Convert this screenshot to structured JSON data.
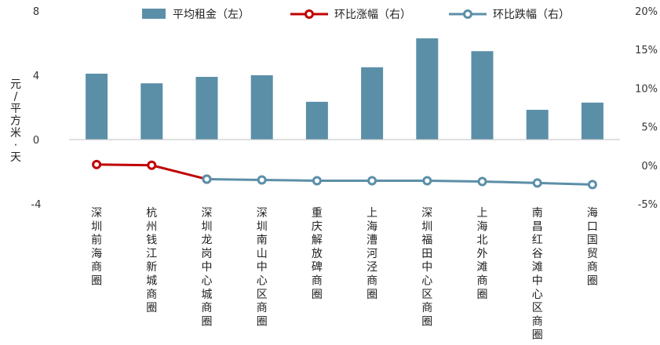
{
  "chart_data": {
    "type": "bar+line",
    "title": "",
    "ylabel_left": "元/平方米·天",
    "ylabel_chars": [
      "元",
      "/",
      "平",
      "方",
      "米",
      "·",
      "天"
    ],
    "ylim_left": [
      -4,
      8
    ],
    "ylim_right": [
      -5,
      20
    ],
    "left_ticks": [
      "8",
      "4",
      "0",
      "-4"
    ],
    "left_tick_values": [
      8,
      4,
      0,
      -4
    ],
    "right_ticks": [
      "20%",
      "15%",
      "10%",
      "5%",
      "0%",
      "-5%"
    ],
    "right_tick_values": [
      20,
      15,
      10,
      5,
      0,
      -5
    ],
    "categories": [
      "深圳前海商圈",
      "杭州钱江新城商圈",
      "深圳龙岗中心城商圈",
      "深圳南山中心区商圈",
      "重庆解放碑商圈",
      "上海漕河泾商圈",
      "深圳福田中心区商圈",
      "上海北外滩商圈",
      "南昌红谷滩中心区商圈",
      "海口国贸商圈"
    ],
    "series": [
      {
        "name": "平均租金（左）",
        "kind": "bar",
        "axis": "left",
        "color": "#5b8fa8",
        "values": [
          4.1,
          3.5,
          3.9,
          4.0,
          2.35,
          4.5,
          6.3,
          5.5,
          1.85,
          2.3
        ]
      },
      {
        "name": "环比涨幅（右）",
        "kind": "line",
        "axis": "right",
        "color": "#c00000",
        "values": [
          0.1,
          0.0,
          -1.8,
          null,
          null,
          null,
          null,
          null,
          null,
          null
        ]
      },
      {
        "name": "环比跌幅（右）",
        "kind": "line",
        "axis": "right",
        "color": "#5b8fa8",
        "values": [
          null,
          null,
          -1.8,
          -1.9,
          -2.0,
          -2.0,
          -2.0,
          -2.1,
          -2.3,
          -2.5
        ]
      }
    ],
    "legend_position": "top",
    "grid": false
  }
}
